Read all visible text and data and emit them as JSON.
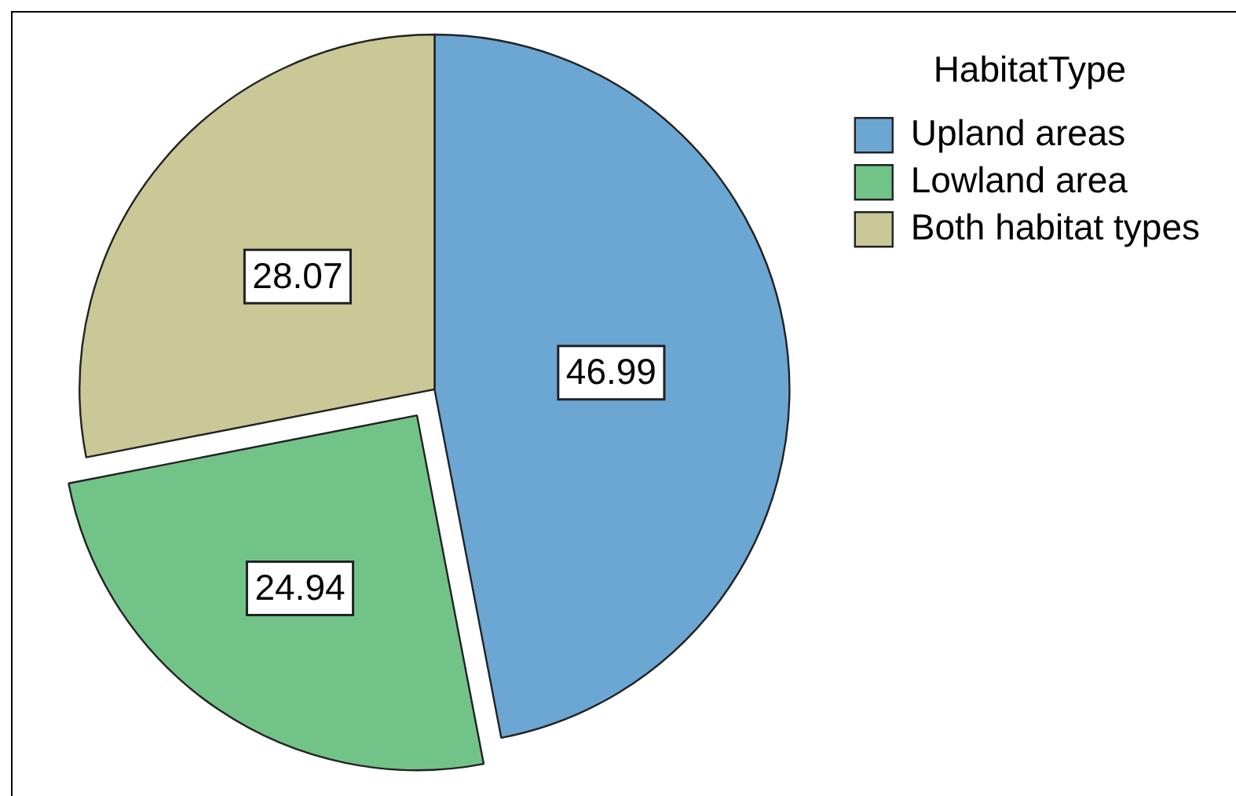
{
  "chart_data": {
    "type": "pie",
    "categories": [
      "Upland areas",
      "Lowland area",
      "Both habitat types"
    ],
    "values": [
      46.99,
      24.94,
      28.07
    ],
    "colors": [
      "#6ca6d3",
      "#72c388",
      "#c9c896"
    ],
    "legend_title": "HabitatType",
    "legend": "top right",
    "data_labels": true
  }
}
